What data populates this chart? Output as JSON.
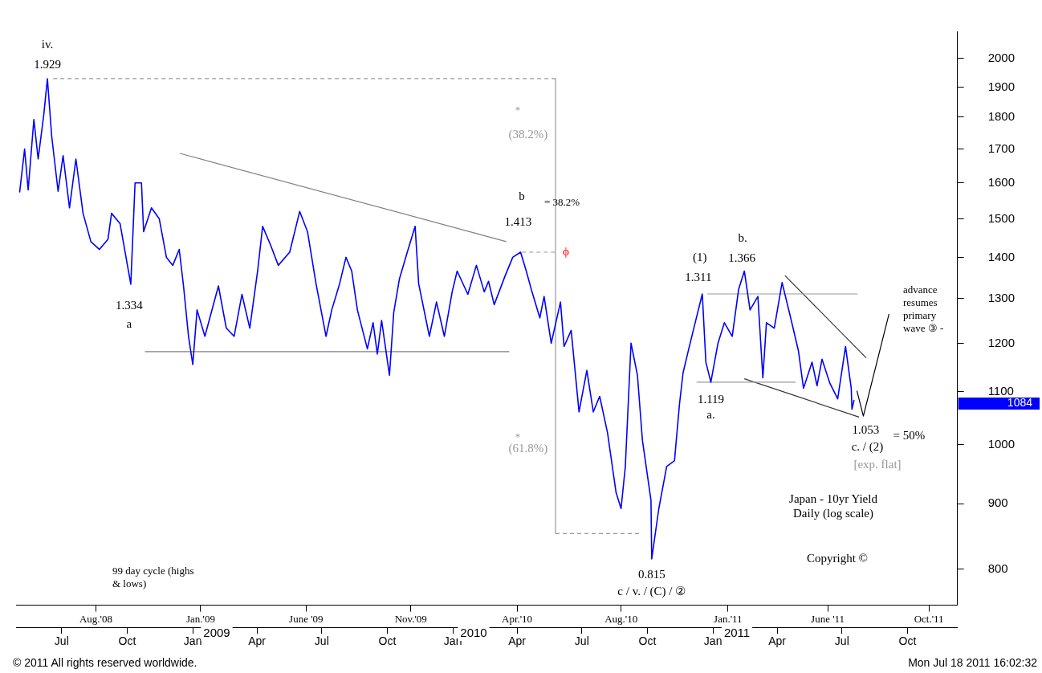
{
  "chart_data": {
    "type": "line",
    "title": "Japan - 10yr Yield",
    "subtitle": "Daily (log scale)",
    "log": true,
    "marker": "none",
    "legend": false,
    "grid": false,
    "xlim": [
      "2008-04-28",
      "2011-12-10"
    ],
    "xticks": [
      {
        "value": "2008-07-01",
        "label": "Jul"
      },
      {
        "value": "2008-10-01",
        "label": "Oct"
      },
      {
        "value": "2009-01-01",
        "label": "Jan"
      },
      {
        "value": "2009-04-01",
        "label": "Apr"
      },
      {
        "value": "2009-07-01",
        "label": "Jul"
      },
      {
        "value": "2009-10-01",
        "label": "Oct"
      },
      {
        "value": "2010-01-01",
        "label": "Jan"
      },
      {
        "value": "2010-04-01",
        "label": "Apr"
      },
      {
        "value": "2010-07-01",
        "label": "Jul"
      },
      {
        "value": "2010-10-01",
        "label": "Oct"
      },
      {
        "value": "2011-01-01",
        "label": "Jan"
      },
      {
        "value": "2011-04-01",
        "label": "Apr"
      },
      {
        "value": "2011-07-01",
        "label": "Jul"
      },
      {
        "value": "2011-10-01",
        "label": "Oct"
      }
    ],
    "x2lim": [
      "2008-04-28",
      "2011-12-10"
    ],
    "x2ticks": [
      {
        "value": "2008-08-18",
        "label": "Aug.'08"
      },
      {
        "value": "2009-01-12",
        "label": "Jan.'09"
      },
      {
        "value": "2009-06-09",
        "label": "June '09"
      },
      {
        "value": "2009-11-03",
        "label": "Nov.'09"
      },
      {
        "value": "2010-04-01",
        "label": "Apr.'10"
      },
      {
        "value": "2010-08-25",
        "label": "Aug.'10"
      },
      {
        "value": "2011-01-22",
        "label": "Jan.'11"
      },
      {
        "value": "2011-06-11",
        "label": "June '11"
      },
      {
        "value": "2011-10-31",
        "label": "Oct.'11"
      }
    ],
    "ylim": [
      750,
      2100
    ],
    "yticks": [
      800,
      900,
      1000,
      1100,
      1200,
      1300,
      1400,
      1500,
      1600,
      1700,
      1800,
      1900,
      2000
    ],
    "series": [
      {
        "type": "line",
        "color": "#0000ff",
        "x": [
          "2008-05-03",
          "2008-05-10",
          "2008-05-15",
          "2008-05-23",
          "2008-05-29",
          "2008-06-06",
          "2008-06-11",
          "2008-06-17",
          "2008-06-26",
          "2008-07-03",
          "2008-07-12",
          "2008-07-21",
          "2008-07-31",
          "2008-08-11",
          "2008-08-23",
          "2008-09-04",
          "2008-09-09",
          "2008-09-21",
          "2008-10-06",
          "2008-10-12",
          "2008-10-21",
          "2008-10-24",
          "2008-11-04",
          "2008-11-15",
          "2008-11-25",
          "2008-12-04",
          "2008-12-13",
          "2008-12-19",
          "2008-12-26",
          "2009-01-01",
          "2009-01-07",
          "2009-01-18",
          "2009-02-06",
          "2009-02-17",
          "2009-02-28",
          "2009-03-11",
          "2009-03-22",
          "2009-04-02",
          "2009-04-09",
          "2009-04-20",
          "2009-05-01",
          "2009-05-17",
          "2009-05-31",
          "2009-06-11",
          "2009-06-23",
          "2009-07-07",
          "2009-07-15",
          "2009-07-26",
          "2009-08-04",
          "2009-08-12",
          "2009-08-20",
          "2009-09-03",
          "2009-09-11",
          "2009-09-17",
          "2009-09-23",
          "2009-10-04",
          "2009-10-10",
          "2009-10-18",
          "2009-10-29",
          "2009-11-09",
          "2009-11-14",
          "2009-11-29",
          "2009-12-09",
          "2009-12-20",
          "2009-12-31",
          "2010-01-07",
          "2010-01-22",
          "2010-02-03",
          "2010-02-14",
          "2010-02-20",
          "2010-02-28",
          "2010-03-15",
          "2010-03-26",
          "2010-04-06",
          "2010-04-14",
          "2010-04-22",
          "2010-05-03",
          "2010-05-09",
          "2010-05-19",
          "2010-06-01",
          "2010-06-06",
          "2010-06-16",
          "2010-06-27",
          "2010-07-08",
          "2010-07-17",
          "2010-07-26",
          "2010-08-06",
          "2010-08-18",
          "2010-08-25",
          "2010-08-31",
          "2010-09-08",
          "2010-09-17",
          "2010-09-24",
          "2010-10-06",
          "2010-10-07",
          "2010-10-17",
          "2010-10-28",
          "2010-11-08",
          "2010-11-15",
          "2010-11-20",
          "2010-11-28",
          "2010-12-07",
          "2010-12-17",
          "2010-12-22",
          "2010-12-29",
          "2011-01-08",
          "2011-01-17",
          "2011-01-28",
          "2011-02-06",
          "2011-02-14",
          "2011-02-22",
          "2011-03-05",
          "2011-03-12",
          "2011-03-17",
          "2011-03-28",
          "2011-04-08",
          "2011-04-20",
          "2011-05-01",
          "2011-05-08",
          "2011-05-20",
          "2011-05-27",
          "2011-06-03",
          "2011-06-14",
          "2011-06-25",
          "2011-07-06",
          "2011-07-14",
          "2011-07-15",
          "2011-07-18"
        ],
        "values": [
          1573,
          1700,
          1580,
          1793,
          1670,
          1810,
          1929,
          1740,
          1576,
          1680,
          1530,
          1670,
          1515,
          1440,
          1420,
          1446,
          1515,
          1487,
          1334,
          1600,
          1600,
          1466,
          1530,
          1500,
          1400,
          1380,
          1420,
          1330,
          1215,
          1155,
          1274,
          1215,
          1330,
          1233,
          1215,
          1310,
          1233,
          1366,
          1480,
          1432,
          1380,
          1413,
          1520,
          1466,
          1335,
          1215,
          1274,
          1335,
          1400,
          1366,
          1274,
          1188,
          1245,
          1177,
          1250,
          1133,
          1268,
          1347,
          1413,
          1480,
          1335,
          1215,
          1292,
          1215,
          1316,
          1366,
          1310,
          1380,
          1316,
          1341,
          1286,
          1353,
          1400,
          1413,
          1366,
          1316,
          1256,
          1305,
          1200,
          1292,
          1193,
          1228,
          1061,
          1143,
          1061,
          1091,
          1022,
          918,
          892,
          962,
          1200,
          1133,
          1008,
          905,
          815,
          892,
          962,
          972,
          1076,
          1138,
          1188,
          1245,
          1311,
          1160,
          1119,
          1200,
          1245,
          1215,
          1322,
          1366,
          1274,
          1305,
          1128,
          1245,
          1233,
          1338,
          1256,
          1183,
          1107,
          1160,
          1112,
          1166,
          1117,
          1086,
          1193,
          1107,
          1066,
          1084
        ]
      },
      {
        "type": "line",
        "color": "#808080",
        "x": [
          "2008-12-14",
          "2010-03-17"
        ],
        "values": [
          1687,
          1440
        ]
      },
      {
        "type": "line",
        "color": "#808080",
        "x": [
          "2008-10-26",
          "2010-03-21"
        ],
        "values": [
          1182,
          1182
        ]
      },
      {
        "type": "line",
        "color": "#999999",
        "line_style": "dashed",
        "x": [
          "2008-06-19",
          "2010-05-25"
        ],
        "values": [
          1929,
          1929
        ]
      },
      {
        "type": "line",
        "color": "#999999",
        "x": [
          "2010-05-25",
          "2010-05-25"
        ],
        "values": [
          1929,
          853
        ]
      },
      {
        "type": "line",
        "color": "#999999",
        "line_style": "dashed",
        "x": [
          "2010-04-08",
          "2010-05-25"
        ],
        "values": [
          1413,
          1413
        ]
      },
      {
        "type": "line",
        "color": "#999999",
        "line_style": "dashed",
        "x": [
          "2010-05-25",
          "2010-09-22"
        ],
        "values": [
          853,
          853
        ]
      },
      {
        "type": "line",
        "color": "#999999",
        "x": [
          "2010-12-24",
          "2011-07-23"
        ],
        "values": [
          1311,
          1311
        ]
      },
      {
        "type": "line",
        "color": "#999999",
        "x": [
          "2010-12-09",
          "2011-04-27"
        ],
        "values": [
          1119,
          1119
        ]
      },
      {
        "type": "line",
        "color": "#333333",
        "x": [
          "2011-04-12",
          "2011-08-04"
        ],
        "values": [
          1355,
          1169
        ]
      },
      {
        "type": "line",
        "color": "#333333",
        "x": [
          "2011-02-14",
          "2011-07-25"
        ],
        "values": [
          1126,
          1051
        ]
      },
      {
        "type": "line",
        "color": "#000000",
        "x": [
          "2011-07-22",
          "2011-07-31",
          "2011-09-05"
        ],
        "values": [
          1102,
          1053,
          1265
        ]
      }
    ],
    "annotations": [
      {
        "text": "iv.",
        "x": "2008-06-11",
        "y": 1929
      },
      {
        "text": "1.929",
        "x": "2008-06-11",
        "y": 1929
      },
      {
        "text": "1.334",
        "x": "2008-10-06",
        "y": 1334
      },
      {
        "text": "a",
        "x": "2008-10-06",
        "y": 1334
      },
      {
        "text": "1.413",
        "x": "2010-04-06",
        "y": 1413
      },
      {
        "text": "(1)",
        "x": "2010-12-17",
        "y": 1311
      },
      {
        "text": "1.311",
        "x": "2010-12-17",
        "y": 1311
      },
      {
        "text": "b.",
        "x": "2011-02-14",
        "y": 1366
      },
      {
        "text": "1.366",
        "x": "2011-02-14",
        "y": 1366
      },
      {
        "text": "1.119",
        "x": "2010-12-29",
        "y": 1119
      },
      {
        "text": "a.",
        "x": "2010-12-29",
        "y": 1119
      },
      {
        "text": "1.053",
        "x": "2011-07-31",
        "y": 1053
      },
      {
        "text": "c. / (2)",
        "x": "2011-07-31",
        "y": 1053
      },
      {
        "text": "= 50%",
        "x": "2011-07-31",
        "y": 1053
      },
      {
        "text": "0.815",
        "x": "2010-10-07",
        "y": 815
      },
      {
        "text": "c / v. / (C) / ②",
        "x": "2010-10-07",
        "y": 815
      },
      {
        "text": "ϕ",
        "x": "2010-05-25",
        "y": 1413
      },
      {
        "text": "(38.2%)",
        "x": "2010-05-25",
        "y": 1744
      },
      {
        "text": "(61.8%)",
        "x": "2010-05-25",
        "y": 993
      },
      "b",
      "= 38.2%",
      "[exp. flat]",
      "*",
      "*",
      "1084",
      "2009",
      "2010",
      "2011",
      "advance resumes primary wave ③ -",
      "99 day cycle (highs & lows)",
      "Copyright ©",
      "© 2011 All rights reserved worldwide.",
      "Mon Jul 18 2011 16:02:32"
    ]
  }
}
